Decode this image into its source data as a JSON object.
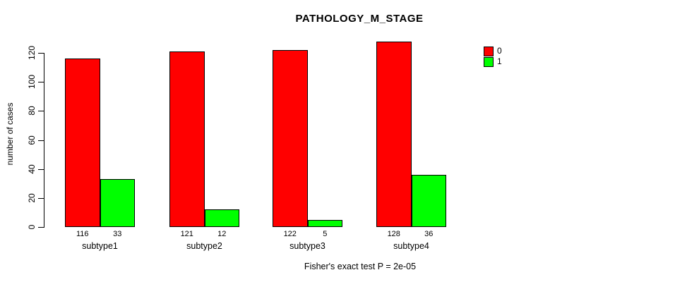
{
  "title": "PATHOLOGY_M_STAGE",
  "footnote": "Fisher's exact test P = 2e-05",
  "chart_data": {
    "type": "bar",
    "title": "PATHOLOGY_M_STAGE",
    "categories": [
      "subtype1",
      "subtype2",
      "subtype3",
      "subtype4"
    ],
    "series": [
      {
        "name": "0",
        "color": "#FF0000",
        "values": [
          116,
          121,
          122,
          128
        ]
      },
      {
        "name": "1",
        "color": "#00FF00",
        "values": [
          33,
          12,
          5,
          36
        ]
      }
    ],
    "xlabel": "",
    "ylabel": "number of cases",
    "yticks": [
      0,
      20,
      40,
      60,
      80,
      100,
      120
    ],
    "ylim": [
      0,
      120
    ],
    "grid": false,
    "legend_position": "top-right",
    "bar_value_labels": true,
    "annotation": "Fisher's exact test P = 2e-05"
  }
}
